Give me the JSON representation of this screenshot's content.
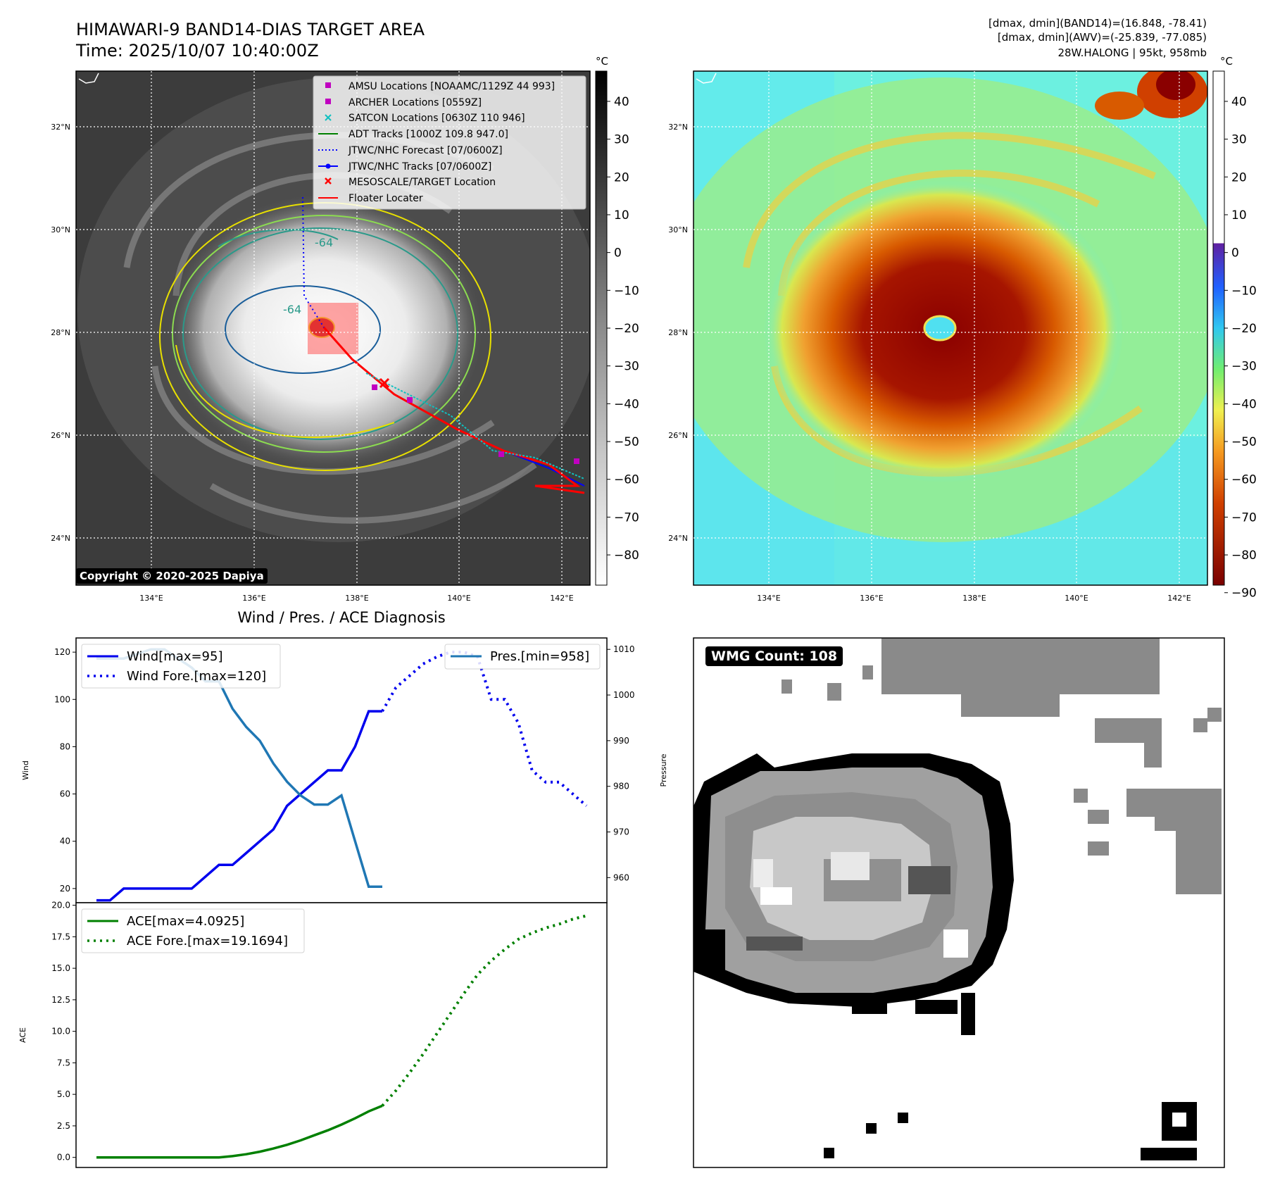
{
  "header": {
    "title_line1": "HIMAWARI-9 BAND14-DIAS TARGET AREA",
    "title_line2": "Time: 2025/10/07 10:40:00Z",
    "info_line1": "[dmax, dmin](BAND14)=(16.848, -78.41)",
    "info_line2": "[dmax, dmin](AWV)=(-25.839, -77.085)",
    "info_line3": "28W.HALONG | 95kt, 958mb"
  },
  "copyright": "Copyright © 2020-2025 Dapiya",
  "wmg_count": "WMG Count: 108",
  "map": {
    "lon_ticks": [
      "134°E",
      "136°E",
      "138°E",
      "140°E",
      "142°E"
    ],
    "lat_ticks": [
      "32°N",
      "30°N",
      "28°N",
      "26°N",
      "24°N"
    ],
    "contour_label": "-64",
    "legend": [
      "AMSU Locations [NOAAMC/1129Z 44 993]",
      "ARCHER Locations [0559Z]",
      "SATCON Locations [0630Z 110 946]",
      "ADT Tracks [1000Z 109.8 947.0]",
      "JTWC/NHC Forecast [07/0600Z]",
      "JTWC/NHC Tracks [07/0600Z]",
      "MESOSCALE/TARGET Location",
      "Floater Locater"
    ],
    "colors": {
      "amsu": "#c000c0",
      "archer": "#c000c0",
      "satcon": "#10c0c0",
      "adt": "#008000",
      "forecast": "#0000ff",
      "tracks": "#0000ff",
      "target": "#ff0000",
      "floater": "#ff0000"
    }
  },
  "colorbar_gray": {
    "unit": "°C",
    "ticks": [
      "40",
      "30",
      "20",
      "10",
      "0",
      "−10",
      "−20",
      "−30",
      "−40",
      "−50",
      "−60",
      "−70",
      "−80"
    ]
  },
  "colorbar_color": {
    "unit": "°C",
    "ticks": [
      "40",
      "30",
      "20",
      "10",
      "0",
      "−10",
      "−20",
      "−30",
      "−40",
      "−50",
      "−60",
      "−70",
      "−80",
      "−90"
    ]
  },
  "chart_data": [
    {
      "type": "line",
      "title": "Wind / Pres. / ACE Diagnosis",
      "ylabel": "Wind",
      "ylabel_right": "Pressure",
      "ylim": [
        14,
        126
      ],
      "ylim_right": [
        954.5,
        1012.5
      ],
      "xlim": [
        -1.5,
        37.5
      ],
      "yticks": [
        "120",
        "100",
        "80",
        "60",
        "40",
        "20"
      ],
      "yticks_right": [
        "1010",
        "1000",
        "990",
        "980",
        "970",
        "960"
      ],
      "series": [
        {
          "name": "Wind[max=95]",
          "axis": "left",
          "color": "#0000ee",
          "style": "solid",
          "x": [
            0,
            1,
            2,
            3,
            4,
            5,
            6,
            7,
            8,
            9,
            10,
            11,
            12,
            13,
            14,
            15,
            16,
            17,
            18,
            19,
            20,
            21
          ],
          "values": [
            15,
            15,
            20,
            20,
            20,
            20,
            20,
            20,
            25,
            30,
            30,
            35,
            40,
            45,
            55,
            60,
            65,
            70,
            70,
            80,
            95,
            95
          ]
        },
        {
          "name": "Wind Fore.[max=120]",
          "axis": "left",
          "color": "#0000ee",
          "style": "dotted",
          "x": [
            21,
            22,
            23,
            24,
            25,
            26,
            27,
            28,
            29,
            30,
            31,
            32,
            33,
            34,
            35,
            36
          ],
          "values": [
            95,
            105,
            110,
            115,
            118,
            120,
            120,
            118,
            100,
            100,
            90,
            70,
            65,
            65,
            60,
            55
          ]
        },
        {
          "name": "Pres.[min=958]",
          "axis": "right",
          "color": "#1f77b4",
          "style": "solid",
          "x": [
            0,
            1,
            2,
            3,
            4,
            5,
            6,
            7,
            8,
            9,
            10,
            11,
            12,
            13,
            14,
            15,
            16,
            17,
            18,
            19,
            20,
            21
          ],
          "values": [
            1008,
            1008,
            1008,
            1009,
            1010,
            1010,
            1008,
            1006,
            1003,
            1003,
            997,
            993,
            990,
            985,
            981,
            978,
            976,
            976,
            978,
            968,
            958,
            958
          ]
        }
      ],
      "legend_left": [
        "Wind[max=95]",
        "Wind Fore.[max=120]"
      ],
      "legend_right": [
        "Pres.[min=958]"
      ]
    },
    {
      "type": "line",
      "ylabel": "ACE",
      "ylim": [
        -0.8,
        20.2
      ],
      "xlim": [
        -1.5,
        37.5
      ],
      "yticks": [
        "20.0",
        "17.5",
        "15.0",
        "12.5",
        "10.0",
        "7.5",
        "5.0",
        "2.5",
        "0.0"
      ],
      "series": [
        {
          "name": "ACE[max=4.0925]",
          "color": "#008000",
          "style": "solid",
          "x": [
            0,
            1,
            2,
            3,
            4,
            5,
            6,
            7,
            8,
            9,
            10,
            11,
            12,
            13,
            14,
            15,
            16,
            17,
            18,
            19,
            20,
            21
          ],
          "values": [
            0,
            0,
            0,
            0,
            0,
            0,
            0,
            0,
            0,
            0,
            0.1,
            0.25,
            0.45,
            0.7,
            1.0,
            1.35,
            1.75,
            2.15,
            2.6,
            3.1,
            3.65,
            4.0925
          ]
        },
        {
          "name": "ACE Fore.[max=19.1694]",
          "color": "#008000",
          "style": "dotted",
          "x": [
            21,
            22,
            23,
            24,
            25,
            26,
            27,
            28,
            29,
            30,
            31,
            32,
            33,
            34,
            35,
            36
          ],
          "values": [
            4.0925,
            5.3,
            6.7,
            8.2,
            9.8,
            11.4,
            13.0,
            14.5,
            15.6,
            16.5,
            17.3,
            17.8,
            18.2,
            18.5,
            18.9,
            19.1694
          ]
        }
      ]
    }
  ]
}
